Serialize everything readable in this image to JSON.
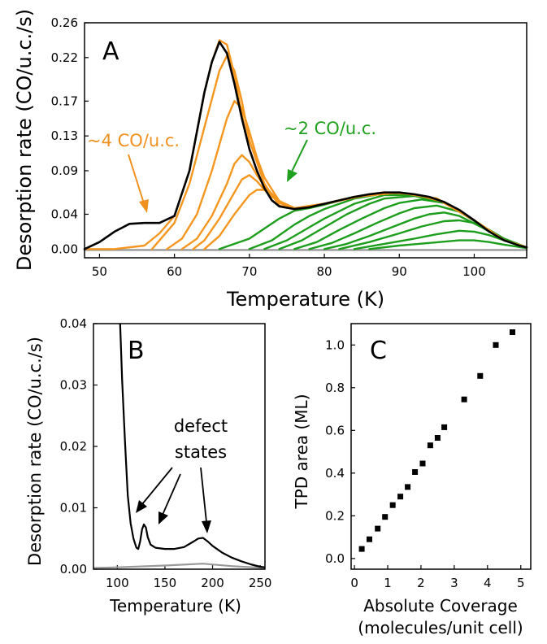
{
  "chart_data": [
    {
      "panel": "A",
      "type": "line",
      "xlabel": "Temperature (K)",
      "ylabel": "Desorption rate (CO/u.c./s)",
      "xlim": [
        48,
        107
      ],
      "ylim": [
        -0.01,
        0.26
      ],
      "xticks": [
        50,
        60,
        70,
        80,
        90,
        100
      ],
      "yticks": [
        0.0,
        0.04,
        0.09,
        0.13,
        0.17,
        0.22,
        0.26
      ],
      "ytick_labels": [
        "0.00",
        "0.04",
        "0.09",
        "0.13",
        "0.17",
        "0.22",
        "0.26"
      ],
      "annotations": [
        {
          "text": "~4 CO/u.c.",
          "color": "#f0901e"
        },
        {
          "text": "~2 CO/u.c.",
          "color": "#1fa01f"
        }
      ],
      "colors": {
        "black": "#000000",
        "orange": "#f5961e",
        "green": "#1c9e1c",
        "gray": "#999999"
      },
      "series": [
        {
          "group": "black",
          "color": "#000000",
          "x": [
            48,
            50,
            52,
            54,
            56,
            58,
            60,
            62,
            64,
            65,
            66,
            67,
            68,
            69,
            70,
            71,
            72,
            73,
            74,
            76,
            78,
            80,
            82,
            84,
            86,
            88,
            90,
            92,
            94,
            96,
            98,
            100,
            102,
            104,
            106,
            107
          ],
          "y": [
            0.0,
            0.008,
            0.02,
            0.029,
            0.03,
            0.03,
            0.038,
            0.09,
            0.18,
            0.215,
            0.238,
            0.225,
            0.19,
            0.15,
            0.115,
            0.09,
            0.07,
            0.056,
            0.049,
            0.046,
            0.048,
            0.052,
            0.056,
            0.06,
            0.063,
            0.065,
            0.065,
            0.063,
            0.06,
            0.054,
            0.045,
            0.033,
            0.02,
            0.01,
            0.004,
            0.002
          ]
        },
        {
          "group": "orange",
          "color": "#f5961e",
          "x": [
            48,
            52,
            56,
            58,
            60,
            62,
            64,
            65,
            66,
            67,
            68,
            69,
            70,
            71,
            72,
            73,
            74,
            76,
            80,
            84,
            88,
            92,
            96,
            100,
            104,
            107
          ],
          "y": [
            0.0,
            0.0,
            0.004,
            0.018,
            0.038,
            0.09,
            0.18,
            0.215,
            0.24,
            0.235,
            0.2,
            0.155,
            0.115,
            0.09,
            0.07,
            0.056,
            0.049,
            0.046,
            0.052,
            0.06,
            0.065,
            0.063,
            0.054,
            0.033,
            0.01,
            0.002
          ]
        },
        {
          "group": "orange",
          "color": "#f5961e",
          "x": [
            57,
            60,
            62,
            64,
            66,
            67,
            68,
            69,
            70,
            72,
            74,
            76,
            80,
            85,
            90,
            95,
            100,
            104,
            107
          ],
          "y": [
            0.0,
            0.03,
            0.075,
            0.14,
            0.205,
            0.222,
            0.205,
            0.17,
            0.125,
            0.075,
            0.05,
            0.046,
            0.052,
            0.061,
            0.065,
            0.058,
            0.033,
            0.01,
            0.002
          ]
        },
        {
          "group": "orange",
          "color": "#f5961e",
          "x": [
            59,
            61,
            63,
            65,
            67,
            68,
            69,
            70,
            71,
            72,
            74,
            76,
            80,
            85,
            90,
            95,
            100,
            104,
            107
          ],
          "y": [
            0.0,
            0.012,
            0.04,
            0.09,
            0.15,
            0.17,
            0.162,
            0.135,
            0.105,
            0.082,
            0.055,
            0.047,
            0.052,
            0.061,
            0.065,
            0.058,
            0.033,
            0.01,
            0.002
          ]
        },
        {
          "group": "orange",
          "color": "#f5961e",
          "x": [
            61,
            63,
            65,
            67,
            68,
            69,
            70,
            71,
            72,
            74,
            76,
            80,
            85,
            90,
            95,
            100,
            104,
            107
          ],
          "y": [
            0.0,
            0.012,
            0.038,
            0.075,
            0.098,
            0.108,
            0.1,
            0.085,
            0.072,
            0.055,
            0.047,
            0.052,
            0.061,
            0.065,
            0.058,
            0.033,
            0.01,
            0.002
          ]
        },
        {
          "group": "orange",
          "color": "#f5961e",
          "x": [
            62.5,
            64,
            66,
            68,
            69,
            70,
            71,
            72,
            74,
            76,
            80,
            85,
            90,
            95,
            100,
            104,
            107
          ],
          "y": [
            0.0,
            0.01,
            0.035,
            0.065,
            0.08,
            0.085,
            0.078,
            0.068,
            0.053,
            0.047,
            0.052,
            0.061,
            0.065,
            0.058,
            0.033,
            0.01,
            0.002
          ]
        },
        {
          "group": "orange",
          "color": "#f5961e",
          "x": [
            64,
            66,
            68,
            70,
            71,
            72,
            73,
            74,
            76,
            80,
            85,
            90,
            95,
            100,
            104,
            107
          ],
          "y": [
            0.0,
            0.015,
            0.04,
            0.062,
            0.068,
            0.068,
            0.062,
            0.055,
            0.047,
            0.052,
            0.061,
            0.065,
            0.058,
            0.033,
            0.01,
            0.002
          ]
        },
        {
          "group": "green",
          "color": "#1c9e1c",
          "x": [
            66,
            70,
            74,
            76,
            78,
            80,
            84,
            88,
            92,
            96,
            100,
            104,
            107
          ],
          "y": [
            0.0,
            0.012,
            0.035,
            0.044,
            0.047,
            0.051,
            0.06,
            0.064,
            0.062,
            0.054,
            0.033,
            0.01,
            0.002
          ]
        },
        {
          "group": "green",
          "color": "#1c9e1c",
          "x": [
            70,
            73,
            76,
            78,
            80,
            84,
            88,
            92,
            96,
            100,
            104,
            107
          ],
          "y": [
            0.0,
            0.01,
            0.028,
            0.038,
            0.046,
            0.058,
            0.064,
            0.062,
            0.054,
            0.033,
            0.01,
            0.002
          ]
        },
        {
          "group": "green",
          "color": "#1c9e1c",
          "x": [
            72,
            75,
            78,
            80,
            84,
            88,
            92,
            96,
            100,
            104,
            107
          ],
          "y": [
            0.0,
            0.01,
            0.025,
            0.035,
            0.052,
            0.062,
            0.062,
            0.054,
            0.033,
            0.01,
            0.002
          ]
        },
        {
          "group": "green",
          "color": "#1c9e1c",
          "x": [
            74,
            77,
            80,
            83,
            86,
            88,
            92,
            96,
            100,
            104,
            107
          ],
          "y": [
            0.0,
            0.01,
            0.025,
            0.04,
            0.052,
            0.058,
            0.061,
            0.054,
            0.033,
            0.01,
            0.002
          ]
        },
        {
          "group": "green",
          "color": "#1c9e1c",
          "x": [
            76,
            79,
            82,
            85,
            88,
            90,
            93,
            96,
            100,
            104,
            107
          ],
          "y": [
            0.0,
            0.008,
            0.022,
            0.035,
            0.047,
            0.053,
            0.057,
            0.053,
            0.033,
            0.01,
            0.002
          ]
        },
        {
          "group": "green",
          "color": "#1c9e1c",
          "x": [
            78,
            81,
            84,
            87,
            90,
            92,
            95,
            98,
            101,
            104,
            107
          ],
          "y": [
            0.0,
            0.007,
            0.018,
            0.03,
            0.041,
            0.047,
            0.05,
            0.043,
            0.027,
            0.01,
            0.002
          ]
        },
        {
          "group": "green",
          "color": "#1c9e1c",
          "x": [
            80,
            83,
            86,
            89,
            92,
            94,
            96,
            98,
            101,
            104,
            107
          ],
          "y": [
            0.0,
            0.006,
            0.015,
            0.025,
            0.035,
            0.04,
            0.042,
            0.038,
            0.025,
            0.01,
            0.002
          ]
        },
        {
          "group": "green",
          "color": "#1c9e1c",
          "x": [
            82,
            86,
            90,
            93,
            96,
            98,
            100,
            102,
            104,
            107
          ],
          "y": [
            0.0,
            0.008,
            0.018,
            0.026,
            0.032,
            0.033,
            0.03,
            0.022,
            0.012,
            0.002
          ]
        },
        {
          "group": "green",
          "color": "#1c9e1c",
          "x": [
            84,
            88,
            92,
            95,
            98,
            100,
            102,
            104,
            107
          ],
          "y": [
            0.0,
            0.006,
            0.012,
            0.017,
            0.021,
            0.02,
            0.016,
            0.01,
            0.002
          ]
        },
        {
          "group": "green",
          "color": "#1c9e1c",
          "x": [
            86,
            90,
            94,
            98,
            100,
            102,
            104,
            107
          ],
          "y": [
            0.0,
            0.004,
            0.007,
            0.01,
            0.01,
            0.008,
            0.005,
            0.001
          ]
        },
        {
          "group": "gray",
          "color": "#999999",
          "x": [
            48,
            60,
            70,
            80,
            90,
            100,
            107
          ],
          "y": [
            -0.001,
            -0.001,
            -0.001,
            -0.001,
            -0.001,
            -0.001,
            -0.001
          ]
        }
      ]
    },
    {
      "panel": "B",
      "type": "line",
      "xlabel": "Temperature (K)",
      "ylabel": "Desorption rate (CO/u.c./s)",
      "xlim": [
        75,
        255
      ],
      "ylim": [
        0,
        0.04
      ],
      "xticks": [
        100,
        150,
        200,
        250
      ],
      "yticks": [
        0.0,
        0.01,
        0.02,
        0.03,
        0.04
      ],
      "ytick_labels": [
        "0.00",
        "0.01",
        "0.02",
        "0.03",
        "0.04"
      ],
      "annotations": [
        {
          "text": "defect"
        },
        {
          "text": "states"
        }
      ],
      "series": [
        {
          "color": "#000000",
          "x": [
            103,
            105,
            108,
            111,
            114,
            117,
            120,
            122,
            124,
            126,
            128,
            130,
            132,
            135,
            140,
            150,
            160,
            170,
            180,
            185,
            190,
            195,
            200,
            210,
            220,
            230,
            240,
            250,
            255
          ],
          "y": [
            0.04,
            0.031,
            0.021,
            0.012,
            0.0075,
            0.005,
            0.0035,
            0.0033,
            0.0045,
            0.0065,
            0.0073,
            0.0068,
            0.0052,
            0.004,
            0.0035,
            0.0033,
            0.0033,
            0.0036,
            0.0045,
            0.005,
            0.0051,
            0.0045,
            0.0038,
            0.0027,
            0.0019,
            0.0013,
            0.0008,
            0.0004,
            0.0003
          ]
        },
        {
          "color": "#999999",
          "x": [
            75,
            100,
            150,
            190,
            220,
            255
          ],
          "y": [
            0.0002,
            0.0003,
            0.0006,
            0.0009,
            0.0005,
            0.0002
          ]
        }
      ]
    },
    {
      "panel": "C",
      "type": "scatter",
      "xlabel": "Absolute Coverage",
      "xlabel2": "(molecules/unit cell)",
      "ylabel": "TPD area (ML)",
      "xlim": [
        -0.1,
        5.3
      ],
      "ylim": [
        -0.05,
        1.1
      ],
      "xticks": [
        0,
        1,
        2,
        3,
        4,
        5
      ],
      "yticks": [
        0.0,
        0.2,
        0.4,
        0.6,
        0.8,
        1.0
      ],
      "ytick_labels": [
        "0.0",
        "0.2",
        "0.4",
        "0.6",
        "0.8",
        "1.0"
      ],
      "x": [
        0.22,
        0.45,
        0.7,
        0.92,
        1.15,
        1.38,
        1.6,
        1.82,
        2.05,
        2.28,
        2.5,
        2.7,
        3.3,
        3.78,
        4.25,
        4.75
      ],
      "y": [
        0.045,
        0.09,
        0.14,
        0.195,
        0.25,
        0.29,
        0.335,
        0.405,
        0.445,
        0.53,
        0.565,
        0.615,
        0.745,
        0.855,
        1.0,
        1.06
      ]
    }
  ],
  "panel_letters": {
    "a": "A",
    "b": "B",
    "c": "C"
  },
  "labels": {
    "a_xlabel": "Temperature (K)",
    "a_ylabel": "Desorption rate (CO/u.c./s)",
    "a_annot_orange": "~4 CO/u.c.",
    "a_annot_green": "~2 CO/u.c.",
    "b_xlabel": "Temperature (K)",
    "b_ylabel": "Desorption rate (CO/u.c./s)",
    "b_annot_1": "defect",
    "b_annot_2": "states",
    "c_xlabel": "Absolute Coverage",
    "c_xlabel2": "(molecules/unit cell)",
    "c_ylabel": "TPD area (ML)"
  }
}
